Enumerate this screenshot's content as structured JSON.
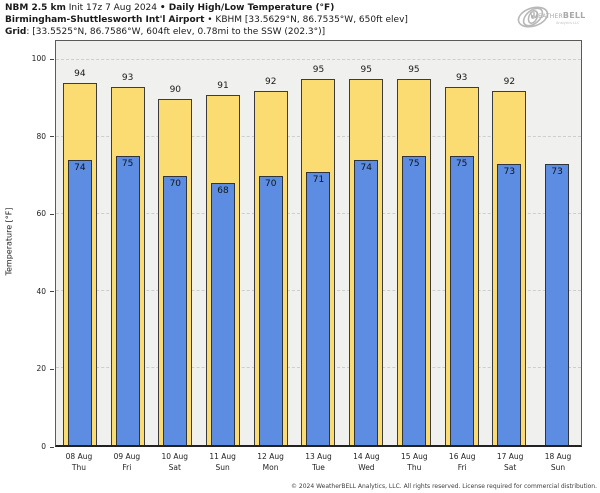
{
  "header": {
    "line1_bold1": "NBM 2.5 km",
    "line1_regular": " Init 17z 7 Aug 2024 ",
    "line1_bold2": "• Daily High/Low Temperature (°F)",
    "line2_bold": "Birmingham-Shuttlesworth Int'l Airport",
    "line2_regular": " • KBHM [33.5629°N, 86.7535°W, 650ft elev]",
    "line3_bold": "Grid",
    "line3_regular": ": [33.5525°N, 86.7586°W, 604ft elev, 0.78mi to the SSW (202.3°)]"
  },
  "logo": {
    "weather": "Weather",
    "bell": "BELL",
    "subtext": "Analytics LLC"
  },
  "footer": "© 2024 WeatherBELL Analytics, LLC. All rights reserved. License required for commercial distribution.",
  "chart_data": {
    "type": "bar",
    "title": "NBM 2.5 km Init 17z 7 Aug 2024 • Daily High/Low Temperature (°F) — Birmingham-Shuttlesworth Int'l Airport (KBHM)",
    "xlabel": "",
    "ylabel": "Temperature [°F]",
    "ylim": [
      0,
      105
    ],
    "yticks": [
      0,
      20,
      40,
      60,
      80,
      100
    ],
    "grid": "horizontal dashed at yticks",
    "legend_position": "none",
    "categories": [
      {
        "date": "08 Aug",
        "day": "Thu"
      },
      {
        "date": "09 Aug",
        "day": "Fri"
      },
      {
        "date": "10 Aug",
        "day": "Sat"
      },
      {
        "date": "11 Aug",
        "day": "Sun"
      },
      {
        "date": "12 Aug",
        "day": "Mon"
      },
      {
        "date": "13 Aug",
        "day": "Tue"
      },
      {
        "date": "14 Aug",
        "day": "Wed"
      },
      {
        "date": "15 Aug",
        "day": "Thu"
      },
      {
        "date": "16 Aug",
        "day": "Fri"
      },
      {
        "date": "17 Aug",
        "day": "Sat"
      },
      {
        "date": "18 Aug",
        "day": "Sun"
      }
    ],
    "series": [
      {
        "name": "Daily High",
        "color": "#fbdc73",
        "values": [
          94,
          93,
          90,
          91,
          92,
          95,
          95,
          95,
          93,
          92,
          null
        ]
      },
      {
        "name": "Daily Low",
        "color": "#5c8de2",
        "values": [
          74,
          75,
          70,
          68,
          70,
          71,
          74,
          75,
          75,
          73,
          73
        ]
      }
    ]
  },
  "colors": {
    "high_bar": "#fbdc73",
    "low_bar": "#5c8de2",
    "bar_border": "#3c3c3c",
    "plot_background": "#f0f0ee",
    "gridline": "#cecece",
    "logo_gray": "#a9a9a9"
  }
}
